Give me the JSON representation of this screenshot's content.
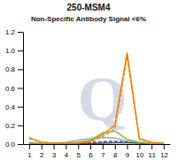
{
  "chart_data": {
    "type": "line",
    "title": "250-MSM4",
    "subtitle": "Non-Specific Antibody Signal <6%",
    "annotations": [
      "Q"
    ],
    "x": [
      1,
      2,
      3,
      4,
      5,
      6,
      7,
      8,
      9,
      10,
      11,
      12
    ],
    "xlim": [
      0.5,
      12.5
    ],
    "xticks": [
      1,
      2,
      3,
      4,
      5,
      6,
      7,
      8,
      9,
      10,
      11,
      12
    ],
    "ylim": [
      0,
      1.2
    ],
    "yticks": [
      {
        "value": 0,
        "label": "0.0"
      },
      0.2,
      0.4,
      0.6,
      0.8,
      {
        "value": 1.0,
        "label": "1.0"
      },
      1.2
    ],
    "grid": false,
    "series": [
      {
        "color": "#3A5070",
        "line_style": "solid",
        "values": [
          0.005,
          0.005,
          0.005,
          0.005,
          0.005,
          0.005,
          0.01,
          0.015,
          0.015,
          0.01,
          0.005,
          0.005
        ]
      },
      {
        "color": "#1A2840",
        "line_style": "dashed",
        "values": [
          0.01,
          0.005,
          0.005,
          0.005,
          0.01,
          0.015,
          0.025,
          0.03,
          0.025,
          0.015,
          0.005,
          0.005
        ]
      },
      {
        "color": "#9BA8C0",
        "line_style": "solid",
        "values": [
          0.02,
          0.01,
          0.01,
          0.02,
          0.04,
          0.06,
          0.07,
          0.065,
          0.03,
          0.02,
          0.01,
          0.01
        ]
      },
      {
        "color": "#7DC043",
        "line_style": "solid",
        "values": [
          0.01,
          0.01,
          0.01,
          0.01,
          0.02,
          0.04,
          0.12,
          0.14,
          0.05,
          0.02,
          0.01,
          0.01
        ]
      },
      {
        "color": "#E8820C",
        "line_style": "dashed",
        "values": [
          0.06,
          0.02,
          0.01,
          0.01,
          0.01,
          0.02,
          0.08,
          0.16,
          0.93,
          0.05,
          0.015,
          0.01
        ]
      },
      {
        "color": "#E8820C",
        "line_style": "solid",
        "values": [
          0.07,
          0.02,
          0.01,
          0.01,
          0.01,
          0.03,
          0.1,
          0.2,
          0.98,
          0.06,
          0.02,
          0.01
        ]
      }
    ]
  }
}
